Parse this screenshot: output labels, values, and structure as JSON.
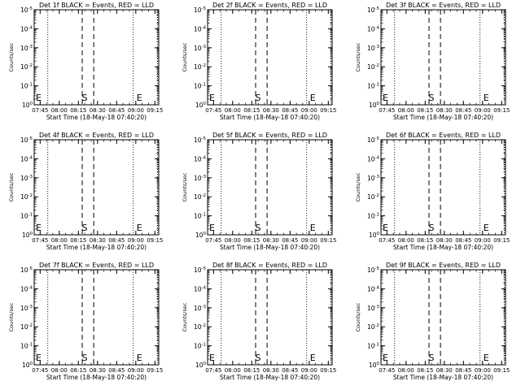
{
  "chart_data": [
    {
      "type": "line",
      "title": "Det 1f BLACK = Events, RED = LLD",
      "xlabel": "Start Time (18-May-18 07:40:20)",
      "ylabel": "Counts/sec",
      "x_ticks": [
        "07:45",
        "08:00",
        "08:15",
        "08:30",
        "08:45",
        "09:00",
        "09:15"
      ],
      "y_scale": "log",
      "y_ticks": [
        "10^0",
        "10^-1",
        "10^-2",
        "10^-3",
        "10^-4",
        "10^-5"
      ],
      "ylim": [
        1,
        1e-05
      ],
      "xlim": [
        "07:40:20",
        "09:18:00"
      ],
      "markers": [
        {
          "text": "E",
          "time": "07:41"
        },
        {
          "text": "S",
          "time": "08:17"
        },
        {
          "text": "E",
          "time": "09:00"
        }
      ],
      "dashed_lines": [
        "08:18",
        "08:27"
      ],
      "dotted_lines": [
        "07:51",
        "08:58",
        "09:17"
      ],
      "series": []
    },
    {
      "type": "line",
      "title": "Det 2f BLACK = Events, RED = LLD",
      "xlabel": "Start Time (18-May-18 07:40:20)",
      "ylabel": "Counts/sec",
      "x_ticks": [
        "07:45",
        "08:00",
        "08:15",
        "08:30",
        "08:45",
        "09:00",
        "09:15"
      ],
      "y_scale": "log",
      "y_ticks": [
        "10^0",
        "10^-1",
        "10^-2",
        "10^-3",
        "10^-4",
        "10^-5"
      ],
      "ylim": [
        1,
        1e-05
      ],
      "xlim": [
        "07:40:20",
        "09:18:00"
      ],
      "markers": [
        {
          "text": "E",
          "time": "07:41"
        },
        {
          "text": "S",
          "time": "08:17"
        },
        {
          "text": "E",
          "time": "09:00"
        }
      ],
      "dashed_lines": [
        "08:18",
        "08:27"
      ],
      "dotted_lines": [
        "07:51",
        "08:58",
        "09:17"
      ],
      "series": []
    },
    {
      "type": "line",
      "title": "Det 3f BLACK = Events, RED = LLD",
      "xlabel": "Start Time (18-May-18 07:40:20)",
      "ylabel": "Counts/sec",
      "x_ticks": [
        "07:45",
        "08:00",
        "08:15",
        "08:30",
        "08:45",
        "09:00",
        "09:15"
      ],
      "y_scale": "log",
      "y_ticks": [
        "10^0",
        "10^-1",
        "10^-2",
        "10^-3",
        "10^-4",
        "10^-5"
      ],
      "ylim": [
        1,
        1e-05
      ],
      "xlim": [
        "07:40:20",
        "09:18:00"
      ],
      "markers": [
        {
          "text": "E",
          "time": "07:41"
        },
        {
          "text": "S",
          "time": "08:17"
        },
        {
          "text": "E",
          "time": "09:00"
        }
      ],
      "dashed_lines": [
        "08:18",
        "08:27"
      ],
      "dotted_lines": [
        "07:51",
        "08:58",
        "09:17"
      ],
      "series": []
    },
    {
      "type": "line",
      "title": "Det 4f BLACK = Events, RED = LLD",
      "xlabel": "Start Time (18-May-18 07:40:20)",
      "ylabel": "Counts/sec",
      "x_ticks": [
        "07:45",
        "08:00",
        "08:15",
        "08:30",
        "08:45",
        "09:00",
        "09:15"
      ],
      "y_scale": "log",
      "y_ticks": [
        "10^0",
        "10^-1",
        "10^-2",
        "10^-3",
        "10^-4",
        "10^-5"
      ],
      "ylim": [
        1,
        1e-05
      ],
      "xlim": [
        "07:40:20",
        "09:18:00"
      ],
      "markers": [
        {
          "text": "E",
          "time": "07:41"
        },
        {
          "text": "S",
          "time": "08:17"
        },
        {
          "text": "E",
          "time": "09:00"
        }
      ],
      "dashed_lines": [
        "08:18",
        "08:27"
      ],
      "dotted_lines": [
        "07:51",
        "08:58",
        "09:17"
      ],
      "series": []
    },
    {
      "type": "line",
      "title": "Det 5f BLACK = Events, RED = LLD",
      "xlabel": "Start Time (18-May-18 07:40:20)",
      "ylabel": "Counts/sec",
      "x_ticks": [
        "07:45",
        "08:00",
        "08:15",
        "08:30",
        "08:45",
        "09:00",
        "09:15"
      ],
      "y_scale": "log",
      "y_ticks": [
        "10^0",
        "10^-1",
        "10^-2",
        "10^-3",
        "10^-4",
        "10^-5"
      ],
      "ylim": [
        1,
        1e-05
      ],
      "xlim": [
        "07:40:20",
        "09:18:00"
      ],
      "markers": [
        {
          "text": "E",
          "time": "07:41"
        },
        {
          "text": "S",
          "time": "08:17"
        },
        {
          "text": "E",
          "time": "09:00"
        }
      ],
      "dashed_lines": [
        "08:18",
        "08:27"
      ],
      "dotted_lines": [
        "07:51",
        "08:58",
        "09:17"
      ],
      "series": []
    },
    {
      "type": "line",
      "title": "Det 6f BLACK = Events, RED = LLD",
      "xlabel": "Start Time (18-May-18 07:40:20)",
      "ylabel": "Counts/sec",
      "x_ticks": [
        "07:45",
        "08:00",
        "08:15",
        "08:30",
        "08:45",
        "09:00",
        "09:15"
      ],
      "y_scale": "log",
      "y_ticks": [
        "10^0",
        "10^-1",
        "10^-2",
        "10^-3",
        "10^-4",
        "10^-5"
      ],
      "ylim": [
        1,
        1e-05
      ],
      "xlim": [
        "07:40:20",
        "09:18:00"
      ],
      "markers": [
        {
          "text": "E",
          "time": "07:41"
        },
        {
          "text": "S",
          "time": "08:17"
        },
        {
          "text": "E",
          "time": "09:00"
        }
      ],
      "dashed_lines": [
        "08:18",
        "08:27"
      ],
      "dotted_lines": [
        "07:51",
        "08:58",
        "09:17"
      ],
      "series": []
    },
    {
      "type": "line",
      "title": "Det 7f BLACK = Events, RED = LLD",
      "xlabel": "Start Time (18-May-18 07:40:20)",
      "ylabel": "Counts/sec",
      "x_ticks": [
        "07:45",
        "08:00",
        "08:15",
        "08:30",
        "08:45",
        "09:00",
        "09:15"
      ],
      "y_scale": "log",
      "y_ticks": [
        "10^0",
        "10^-1",
        "10^-2",
        "10^-3",
        "10^-4",
        "10^-5"
      ],
      "ylim": [
        1,
        1e-05
      ],
      "xlim": [
        "07:40:20",
        "09:18:00"
      ],
      "markers": [
        {
          "text": "E",
          "time": "07:41"
        },
        {
          "text": "S",
          "time": "08:17"
        },
        {
          "text": "E",
          "time": "09:00"
        }
      ],
      "dashed_lines": [
        "08:18",
        "08:27"
      ],
      "dotted_lines": [
        "07:51",
        "08:58",
        "09:17"
      ],
      "series": []
    },
    {
      "type": "line",
      "title": "Det 8f BLACK = Events, RED = LLD",
      "xlabel": "Start Time (18-May-18 07:40:20)",
      "ylabel": "Counts/sec",
      "x_ticks": [
        "07:45",
        "08:00",
        "08:15",
        "08:30",
        "08:45",
        "09:00",
        "09:15"
      ],
      "y_scale": "log",
      "y_ticks": [
        "10^0",
        "10^-1",
        "10^-2",
        "10^-3",
        "10^-4",
        "10^-5"
      ],
      "ylim": [
        1,
        1e-05
      ],
      "xlim": [
        "07:40:20",
        "09:18:00"
      ],
      "markers": [
        {
          "text": "E",
          "time": "07:41"
        },
        {
          "text": "S",
          "time": "08:17"
        },
        {
          "text": "E",
          "time": "09:00"
        }
      ],
      "dashed_lines": [
        "08:18",
        "08:27"
      ],
      "dotted_lines": [
        "07:51",
        "08:58",
        "09:17"
      ],
      "series": []
    },
    {
      "type": "line",
      "title": "Det 9f BLACK = Events, RED = LLD",
      "xlabel": "Start Time (18-May-18 07:40:20)",
      "ylabel": "Counts/sec",
      "x_ticks": [
        "07:45",
        "08:00",
        "08:15",
        "08:30",
        "08:45",
        "09:00",
        "09:15"
      ],
      "y_scale": "log",
      "y_ticks": [
        "10^0",
        "10^-1",
        "10^-2",
        "10^-3",
        "10^-4",
        "10^-5"
      ],
      "ylim": [
        1,
        1e-05
      ],
      "xlim": [
        "07:40:20",
        "09:18:00"
      ],
      "markers": [
        {
          "text": "E",
          "time": "07:41"
        },
        {
          "text": "S",
          "time": "08:17"
        },
        {
          "text": "E",
          "time": "09:00"
        }
      ],
      "dashed_lines": [
        "08:18",
        "08:27"
      ],
      "dotted_lines": [
        "07:51",
        "08:58",
        "09:17"
      ],
      "series": []
    }
  ],
  "colors": {
    "axis": "#000000",
    "background": "#ffffff"
  }
}
